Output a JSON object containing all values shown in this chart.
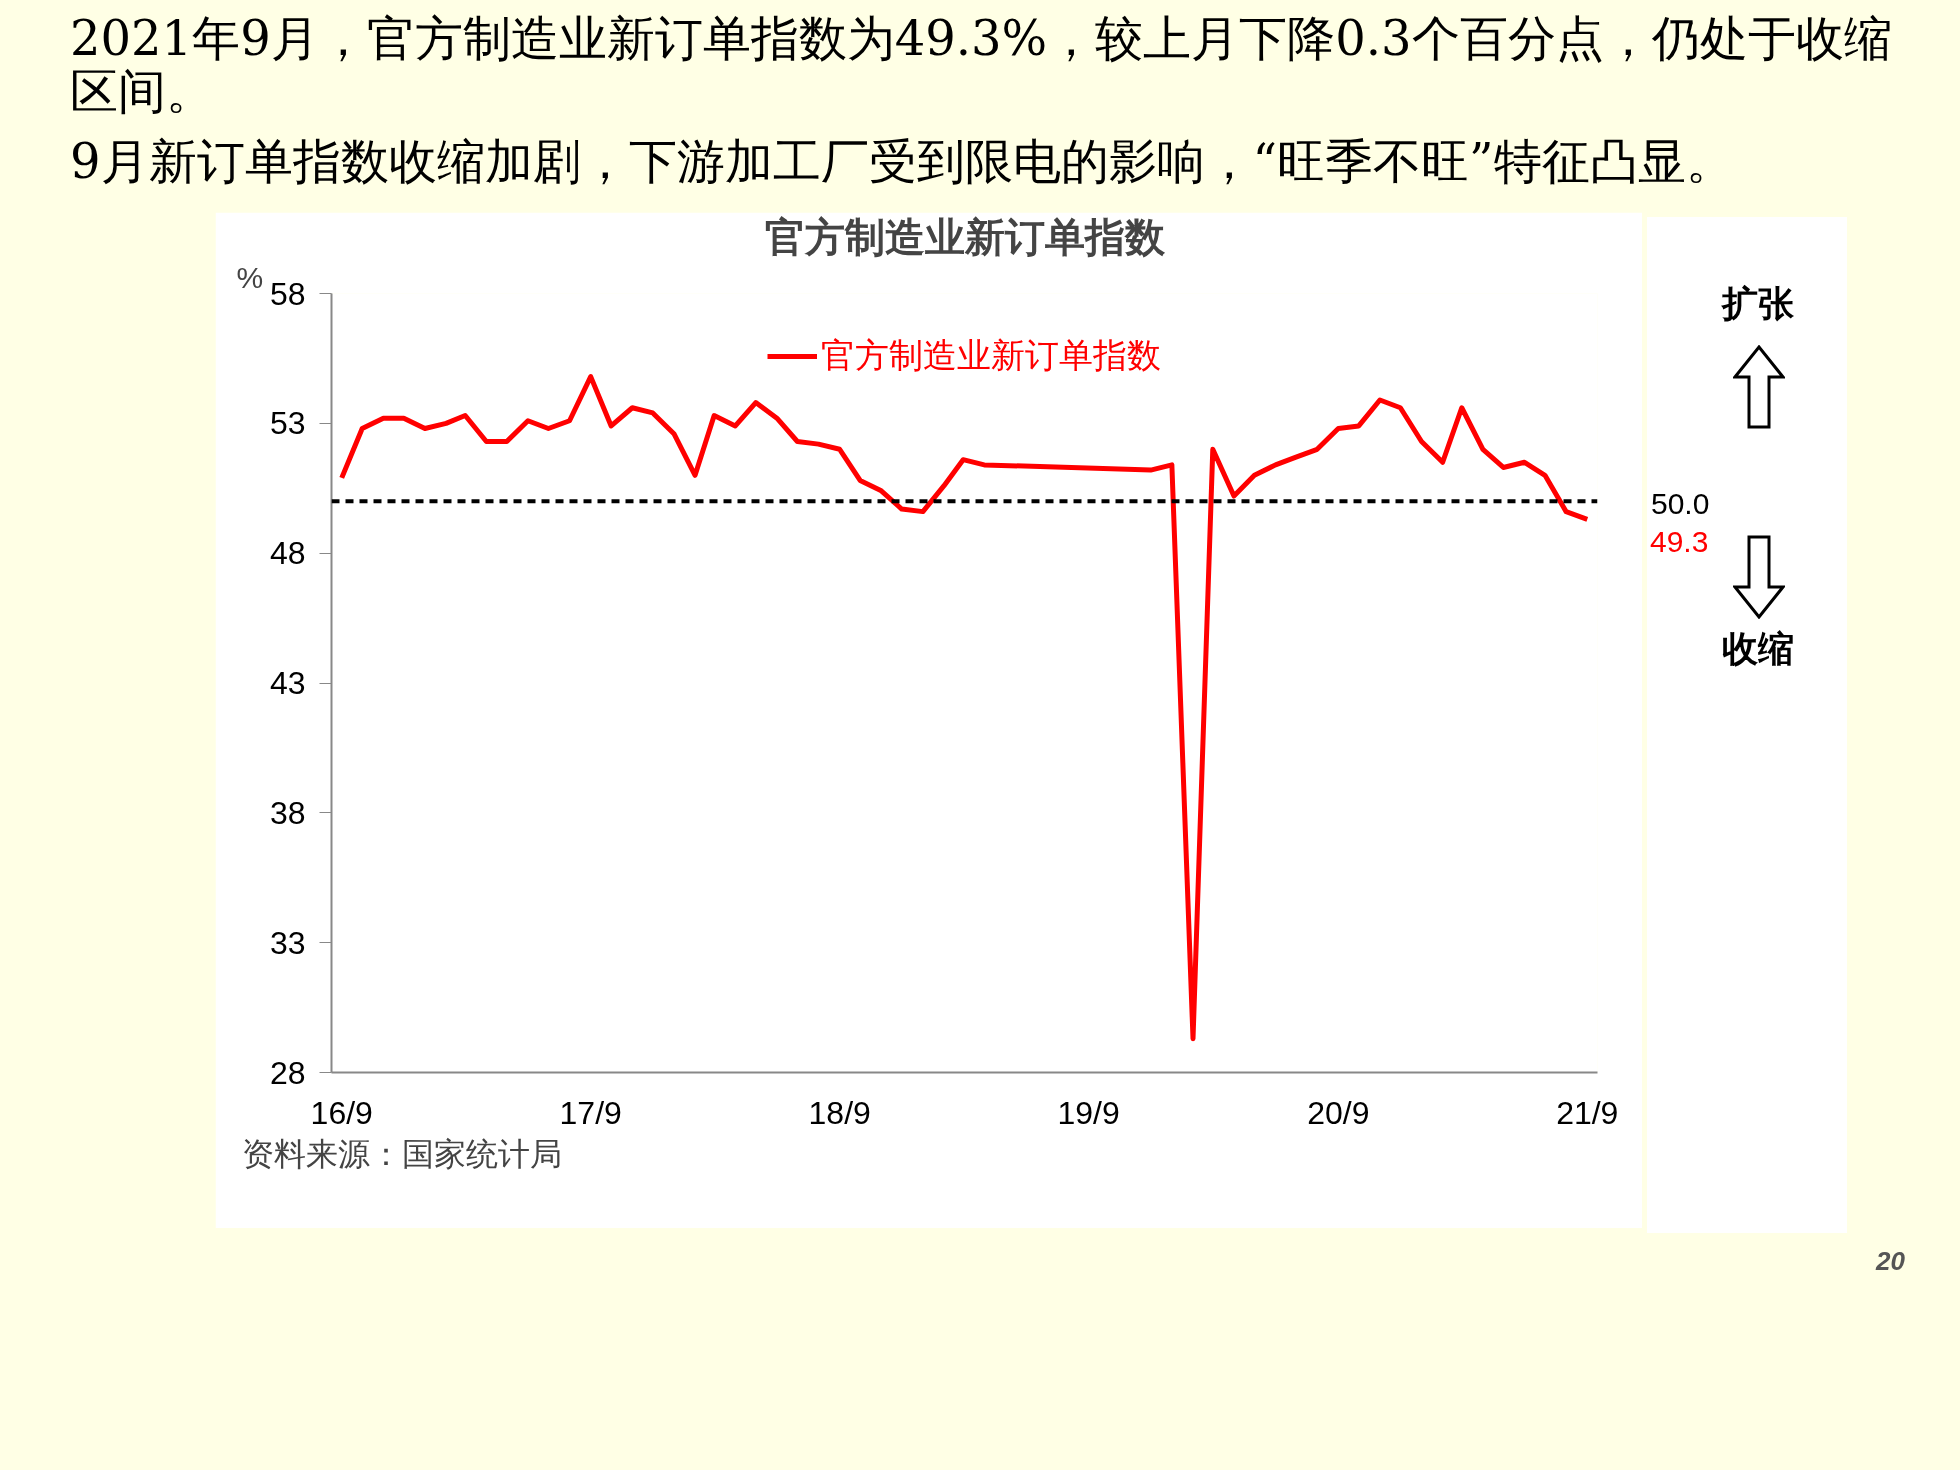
{
  "chart_data": {
    "type": "line",
    "title": "官方制造业新订单指数",
    "ylabel": "%",
    "xlim": [
      "2016-08-17",
      "2021-09-16"
    ],
    "xticks": [
      {
        "value": "2016-09",
        "label": "16/9"
      },
      {
        "value": "2017-09",
        "label": "17/9"
      },
      {
        "value": "2018-09",
        "label": "18/9"
      },
      {
        "value": "2019-09",
        "label": "19/9"
      },
      {
        "value": "2020-09",
        "label": "20/9"
      },
      {
        "value": "2021-09",
        "label": "21/9"
      }
    ],
    "ylim": [
      28,
      58
    ],
    "yticks": [
      28,
      33,
      38,
      43,
      48,
      53,
      58
    ],
    "series": [
      {
        "name": "官方制造业新订单指数",
        "color": "#ff0000",
        "x": [
          "2016-09",
          "2016-10",
          "2016-11",
          "2016-12",
          "2017-01",
          "2017-02",
          "2017-03",
          "2017-04",
          "2017-05",
          "2017-06",
          "2017-07",
          "2017-08",
          "2017-09",
          "2017-10",
          "2017-11",
          "2017-12",
          "2018-01",
          "2018-02",
          "2018-03",
          "2018-04",
          "2018-05",
          "2018-06",
          "2018-07",
          "2018-08",
          "2018-09",
          "2018-10",
          "2018-11",
          "2018-12",
          "2019-01",
          "2019-02",
          "2019-03",
          "2019-04",
          "2019-12",
          "2020-01",
          "2020-02",
          "2020-03",
          "2020-04",
          "2020-05",
          "2020-06",
          "2020-07",
          "2020-08",
          "2020-09",
          "2020-10",
          "2020-11",
          "2020-12",
          "2021-01",
          "2021-02",
          "2021-03",
          "2021-04",
          "2021-05",
          "2021-06",
          "2021-07",
          "2021-08",
          "2021-09"
        ],
        "values": [
          50.9,
          52.8,
          53.2,
          53.2,
          52.8,
          53.0,
          53.3,
          52.3,
          52.3,
          53.1,
          52.8,
          53.1,
          54.8,
          52.9,
          53.6,
          53.4,
          52.6,
          51.0,
          53.3,
          52.9,
          53.8,
          53.2,
          52.3,
          52.2,
          52.0,
          50.8,
          50.4,
          49.7,
          49.6,
          50.6,
          51.6,
          51.4,
          51.2,
          51.4,
          29.3,
          52.0,
          50.2,
          51.0,
          51.4,
          51.7,
          52.0,
          52.8,
          52.9,
          53.9,
          53.6,
          52.3,
          51.5,
          53.6,
          52.0,
          51.3,
          51.5,
          51.0,
          49.6,
          49.3
        ]
      }
    ],
    "ref_lines": [
      {
        "axis": "y",
        "value": 50,
        "label": "50.0",
        "color": "#000000",
        "line_style": "dashed"
      }
    ],
    "annotations": [
      "2021年9月，官方制造业新订单指数为49.3%，较上月下降0.3个百分点，仍处于收缩区间。",
      "9月新订单指数收缩加剧，下游加工厂受到限电的影响，“旺季不旺”特征凸显。",
      {
        "text": "49.3",
        "x": "2021-09",
        "y": 49.3
      },
      "扩张",
      "收缩",
      "资料来源：国家统计局",
      "20"
    ],
    "legend": "top",
    "grid": false,
    "line_style": "solid",
    "marker": "none"
  }
}
